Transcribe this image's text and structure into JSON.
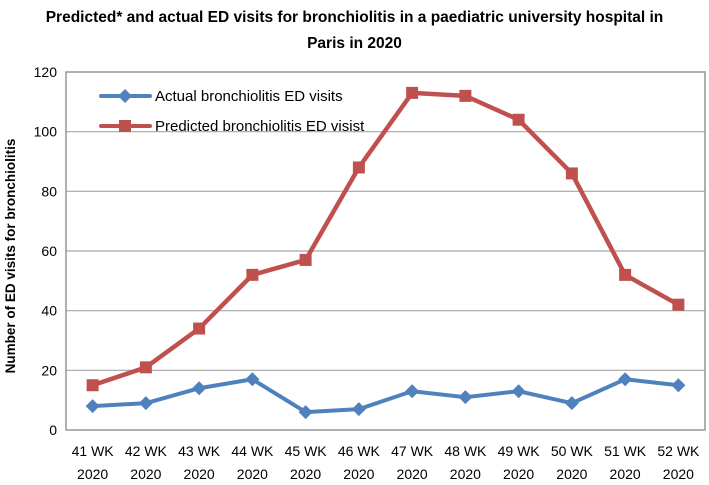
{
  "chart_data": {
    "type": "line",
    "title": "Predicted* and actual ED visits for bronchiolitis in a paediatric university hospital in Paris in 2020",
    "ylabel": "Number of ED visits for bronchiolitis",
    "xlabel": "",
    "ylim": [
      0,
      120
    ],
    "yticks": [
      0,
      20,
      40,
      60,
      80,
      100,
      120
    ],
    "grid": true,
    "legend_position": "top-left-inside",
    "categories": [
      "41 WK 2020",
      "42 WK 2020",
      "43 WK 2020",
      "44 WK 2020",
      "45 WK 2020",
      "46 WK 2020",
      "47 WK 2020",
      "48 WK 2020",
      "49 WK 2020",
      "50 WK 2020",
      "51 WK 2020",
      "52 WK 2020"
    ],
    "series": [
      {
        "name": "Actual bronchiolitis ED visits",
        "marker": "diamond",
        "color": "#4F81BD",
        "values": [
          8,
          9,
          14,
          17,
          6,
          7,
          13,
          11,
          13,
          9,
          17,
          15
        ]
      },
      {
        "name": "Predicted bronchiolitis ED visist",
        "marker": "square",
        "color": "#C0504D",
        "values": [
          15,
          21,
          34,
          52,
          57,
          88,
          113,
          112,
          104,
          86,
          52,
          42
        ]
      }
    ],
    "colors": {
      "gridline": "#A6A6A6",
      "axis": "#8F8F8F",
      "text": "#000000"
    }
  }
}
